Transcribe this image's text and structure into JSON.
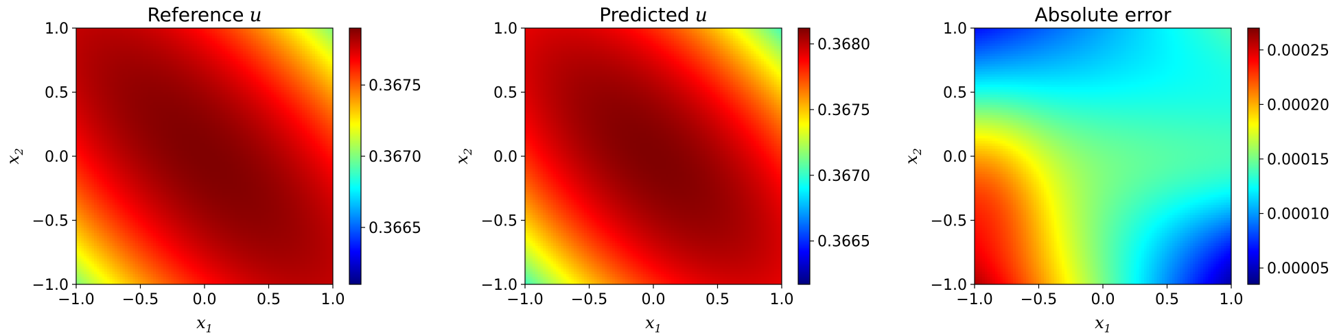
{
  "chart_data": [
    {
      "type": "heatmap",
      "title": "Reference",
      "title_var": "u",
      "x_var": "x",
      "x_sub": "1",
      "y_var": "x",
      "y_sub": "2",
      "xlim": [
        -1.0,
        1.0
      ],
      "ylim": [
        -1.0,
        1.0
      ],
      "x_ticks": [
        -1.0,
        -0.5,
        0.0,
        0.5,
        1.0
      ],
      "x_tick_labels": [
        "−1.0",
        "−0.5",
        "0.0",
        "0.5",
        "1.0"
      ],
      "y_ticks": [
        -1.0,
        -0.5,
        0.0,
        0.5,
        1.0
      ],
      "y_tick_labels": [
        "−1.0",
        "−0.5",
        "0.0",
        "0.5",
        "1.0"
      ],
      "colormap": "jet",
      "colorbar": {
        "min": 0.3661,
        "max": 0.3679,
        "ticks": [
          0.3665,
          0.367,
          0.3675
        ],
        "tick_labels": [
          "0.3665",
          "0.3670",
          "0.3675"
        ]
      },
      "field": {
        "model": "ridge",
        "peak": 0.3679,
        "a": 0.0009,
        "b": 0.00012
      }
    },
    {
      "type": "heatmap",
      "title": "Predicted",
      "title_var": "u",
      "x_var": "x",
      "x_sub": "1",
      "y_var": "x",
      "y_sub": "2",
      "xlim": [
        -1.0,
        1.0
      ],
      "ylim": [
        -1.0,
        1.0
      ],
      "x_ticks": [
        -1.0,
        -0.5,
        0.0,
        0.5,
        1.0
      ],
      "x_tick_labels": [
        "−1.0",
        "−0.5",
        "0.0",
        "0.5",
        "1.0"
      ],
      "y_ticks": [
        -1.0,
        -0.5,
        0.0,
        0.5,
        1.0
      ],
      "y_tick_labels": [
        "−1.0",
        "−0.5",
        "0.0",
        "0.5",
        "1.0"
      ],
      "colormap": "jet",
      "colorbar": {
        "min": 0.36617,
        "max": 0.36812,
        "ticks": [
          0.3665,
          0.367,
          0.3675,
          0.368
        ],
        "tick_labels": [
          "0.3665",
          "0.3670",
          "0.3675",
          "0.3680"
        ]
      },
      "field": {
        "model": "ridge",
        "peak": 0.36812,
        "a": 0.0011,
        "b": 0.0002
      }
    },
    {
      "type": "heatmap",
      "title": "Absolute error",
      "title_var": "",
      "x_var": "x",
      "x_sub": "1",
      "y_var": "x",
      "y_sub": "2",
      "xlim": [
        -1.0,
        1.0
      ],
      "ylim": [
        -1.0,
        1.0
      ],
      "x_ticks": [
        -1.0,
        -0.5,
        0.0,
        0.5,
        1.0
      ],
      "x_tick_labels": [
        "−1.0",
        "−0.5",
        "0.0",
        "0.5",
        "1.0"
      ],
      "y_ticks": [
        -1.0,
        -0.5,
        0.0,
        0.5,
        1.0
      ],
      "y_tick_labels": [
        "−1.0",
        "−0.5",
        "0.0",
        "0.5",
        "1.0"
      ],
      "colormap": "jet",
      "colorbar": {
        "min": 3.5e-05,
        "max": 0.00027,
        "ticks": [
          5e-05,
          0.0001,
          0.00015,
          0.0002,
          0.00025
        ],
        "tick_labels": [
          "0.00005",
          "0.00010",
          "0.00015",
          "0.00020",
          "0.00025"
        ]
      },
      "field": {
        "model": "error",
        "corner_bottom_left": 0.00026,
        "corner_bottom_right": 4e-05,
        "corner_top_left": 6.5e-05,
        "corner_top_right": 0.00014,
        "left_mid_peak": 0.000265,
        "right_mid": 0.0002
      }
    }
  ]
}
